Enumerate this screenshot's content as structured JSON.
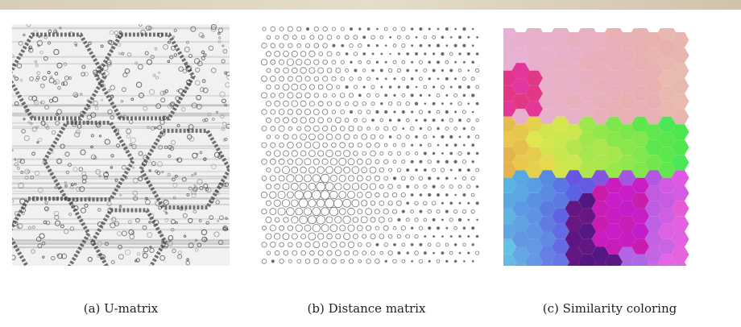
{
  "panels": [
    {
      "caption": "(a) U-matrix"
    },
    {
      "caption": "(b) Distance matrix"
    },
    {
      "caption": "(c) Similarity coloring"
    }
  ]
}
